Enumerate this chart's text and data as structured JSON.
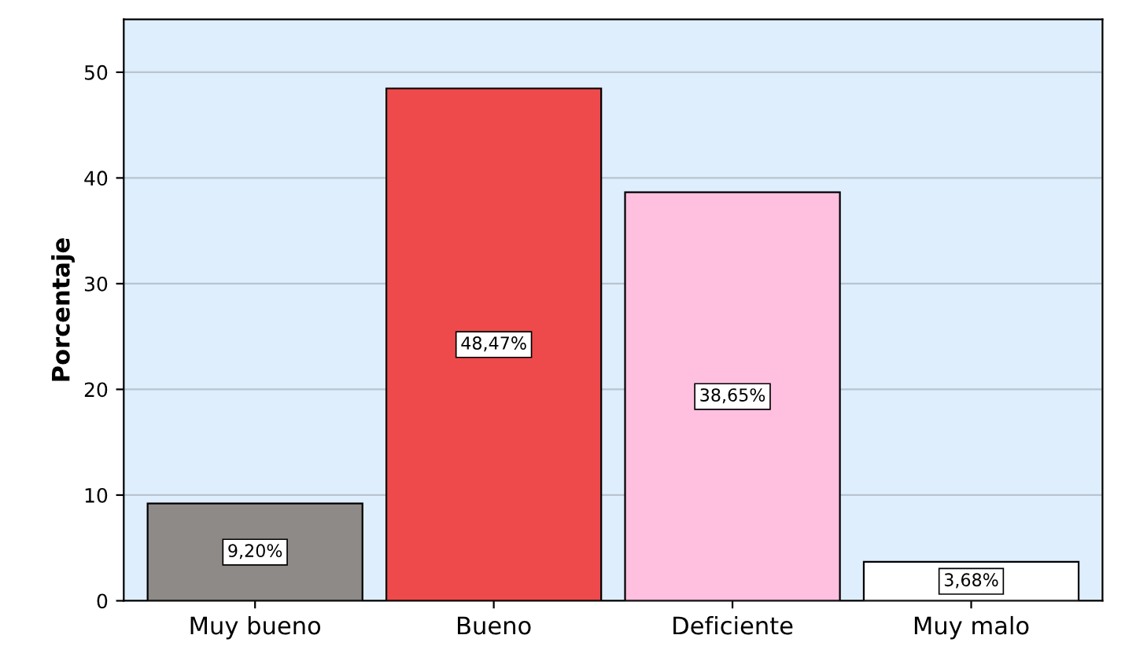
{
  "chart_data": {
    "type": "bar",
    "ylabel": "Porcentaje",
    "categories": [
      "Muy bueno",
      "Bueno",
      "Deficiente",
      "Muy malo"
    ],
    "values": [
      9.2,
      48.47,
      38.65,
      3.68
    ],
    "colors": [
      "#8e8a88",
      "#ee4a4c",
      "#ffc0e0",
      "#ffffff"
    ],
    "value_labels": [
      "9,20%",
      "48,47%",
      "38,65%",
      "3,68%"
    ],
    "ylim": [
      0,
      55
    ],
    "yticks": [
      0,
      10,
      20,
      30,
      40,
      50
    ],
    "grid": "y"
  }
}
